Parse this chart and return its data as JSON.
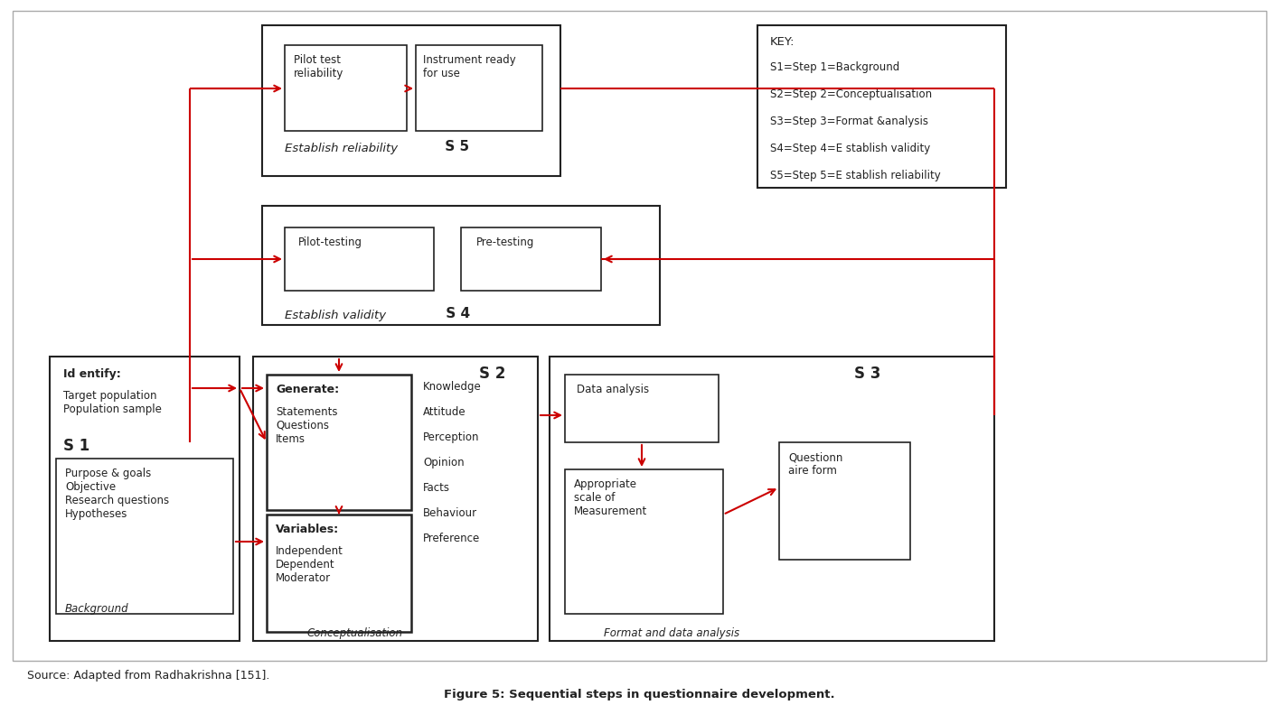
{
  "title": "Figure 5: Sequential steps in questionnaire development.",
  "source_text": "Source: Adapted from Radhakrishna [151].",
  "bg": "#ffffff",
  "blk": "#222222",
  "red": "#cc0000",
  "key_lines": [
    "KEY:",
    "S1=Step 1=Background",
    "S2=Step 2=Conceptualisation",
    "S3=Step 3=Format &analysis",
    "S4=Step 4=E stablish validity",
    "S5=Step 5=E stablish reliability"
  ],
  "items": [
    "Knowledge",
    "Attitude",
    "Perception",
    "Opinion",
    "Facts",
    "Behaviour",
    "Preference"
  ],
  "figsize": [
    14.15,
    7.81
  ],
  "dpi": 100
}
